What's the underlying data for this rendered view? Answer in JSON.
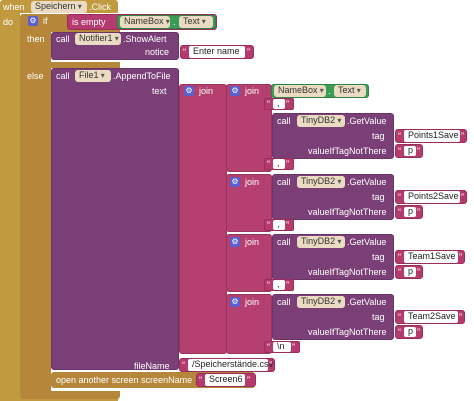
{
  "event": {
    "when": "when",
    "component": "Speichern",
    "event_name": ".Click",
    "do": "do"
  },
  "if_block": {
    "if": "if",
    "then": "then",
    "else": "else",
    "is_empty": "is empty",
    "namebox": "NameBox",
    "dot": ".",
    "text_prop": "Text"
  },
  "notifier_call": {
    "call": "call",
    "component": "Notifier1",
    "method": ".ShowAlert",
    "notice_label": "notice",
    "notice_value": "Enter name"
  },
  "file_call": {
    "call": "call",
    "component": "File1",
    "method": ".AppendToFile",
    "text_label": "text",
    "filename_label": "fileName",
    "filename_value": "/Speicherstände.csv"
  },
  "joins": {
    "join": "join",
    "comma": ",",
    "newline": "\\n"
  },
  "tinydb_calls": [
    {
      "call": "call",
      "component": "TinyDB2",
      "method": ".GetValue",
      "tag_label": "tag",
      "tag_value": "Points1Save",
      "default_label": "valueIfTagNotThere",
      "default_value": "p"
    },
    {
      "call": "call",
      "component": "TinyDB2",
      "method": ".GetValue",
      "tag_label": "tag",
      "tag_value": "Points2Save",
      "default_label": "valueIfTagNotThere",
      "default_value": "p"
    },
    {
      "call": "call",
      "component": "TinyDB2",
      "method": ".GetValue",
      "tag_label": "tag",
      "tag_value": "Team1Save",
      "default_label": "valueIfTagNotThere",
      "default_value": "p"
    },
    {
      "call": "call",
      "component": "TinyDB2",
      "method": ".GetValue",
      "tag_label": "tag",
      "tag_value": "Team2Save",
      "default_label": "valueIfTagNotThere",
      "default_value": "p"
    }
  ],
  "screen": {
    "label": "open another screen  screenName",
    "value": "Screen6"
  },
  "colors": {
    "event": "#c19a3f",
    "procedure": "#7b3f77",
    "text": "#b53a6e",
    "component": "#3a9c55",
    "mutator": "#5a5fcf"
  }
}
